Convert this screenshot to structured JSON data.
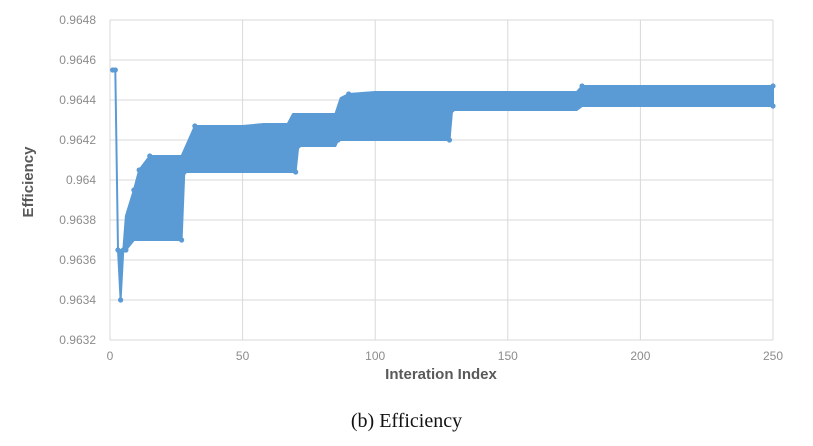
{
  "chart_data": {
    "type": "line",
    "title": "",
    "xlabel": "Interation Index",
    "ylabel": "Efficiency",
    "xlim": [
      0,
      250
    ],
    "ylim": [
      0.9632,
      0.9648
    ],
    "x_ticks": [
      0,
      50,
      100,
      150,
      200,
      250
    ],
    "x_tick_labels": [
      "0",
      "50",
      "100",
      "150",
      "200",
      "250"
    ],
    "y_ticks": [
      0.9632,
      0.9634,
      0.9636,
      0.9638,
      0.964,
      0.9642,
      0.9644,
      0.9646,
      0.9648
    ],
    "y_tick_labels": [
      "0.9632",
      "0.9634",
      "0.9636",
      "0.9638",
      "0.964",
      "0.9642",
      "0.9644",
      "0.9646",
      "0.9648"
    ],
    "grid": "vertical",
    "series_color": "#5b9bd5",
    "envelope": {
      "upper": [
        [
          1,
          0.96455
        ],
        [
          2,
          0.96455
        ],
        [
          3,
          0.96365
        ],
        [
          5,
          0.96365
        ],
        [
          6,
          0.96382
        ],
        [
          9,
          0.96395
        ],
        [
          11,
          0.96405
        ],
        [
          15,
          0.96412
        ],
        [
          27,
          0.96412
        ],
        [
          32,
          0.96427
        ],
        [
          50,
          0.96427
        ],
        [
          58,
          0.96428
        ],
        [
          67,
          0.96428
        ],
        [
          69,
          0.96433
        ],
        [
          85,
          0.96433
        ],
        [
          87,
          0.96441
        ],
        [
          90,
          0.96443
        ],
        [
          100,
          0.96444
        ],
        [
          176,
          0.96444
        ],
        [
          178,
          0.96447
        ],
        [
          250,
          0.96447
        ]
      ],
      "lower": [
        [
          1,
          0.96455
        ],
        [
          2,
          0.96455
        ],
        [
          3,
          0.96365
        ],
        [
          4,
          0.9634
        ],
        [
          5,
          0.96365
        ],
        [
          6,
          0.96365
        ],
        [
          9,
          0.9637
        ],
        [
          27,
          0.9637
        ],
        [
          28,
          0.96404
        ],
        [
          70,
          0.96404
        ],
        [
          71,
          0.96417
        ],
        [
          85,
          0.96417
        ],
        [
          86,
          0.9642
        ],
        [
          128,
          0.9642
        ],
        [
          129,
          0.96435
        ],
        [
          176,
          0.96435
        ],
        [
          178,
          0.96437
        ],
        [
          250,
          0.96437
        ]
      ]
    },
    "points": [
      [
        1,
        0.96455
      ],
      [
        2,
        0.96455
      ],
      [
        3,
        0.96365
      ],
      [
        4,
        0.9634
      ],
      [
        5,
        0.96365
      ],
      [
        6,
        0.96365
      ],
      [
        7,
        0.96382
      ],
      [
        9,
        0.96395
      ],
      [
        11,
        0.96405
      ],
      [
        15,
        0.96412
      ],
      [
        27,
        0.9637
      ],
      [
        28,
        0.96404
      ],
      [
        32,
        0.96427
      ],
      [
        70,
        0.96404
      ],
      [
        71,
        0.96417
      ],
      [
        86,
        0.9642
      ],
      [
        90,
        0.96443
      ],
      [
        128,
        0.9642
      ],
      [
        129,
        0.96435
      ],
      [
        178,
        0.96447
      ],
      [
        250,
        0.96437
      ],
      [
        250,
        0.96447
      ]
    ]
  },
  "caption": "(b) Efficiency"
}
